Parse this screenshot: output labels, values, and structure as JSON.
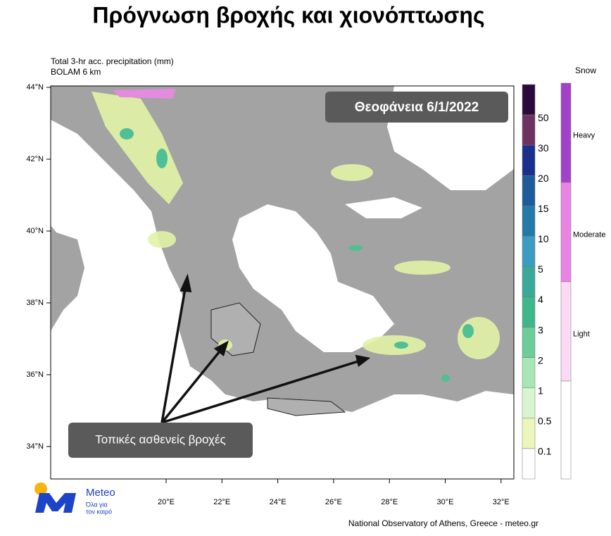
{
  "title": "Πρόγνωση βροχής και χιονόπτωσης",
  "map": {
    "header": [
      "Total 3-hr acc. precipitation (mm)",
      "BOLAM 6 km"
    ],
    "lat_labels": [
      "44°N",
      "42°N",
      "40°N",
      "38°N",
      "36°N",
      "34°N"
    ],
    "lon_labels": [
      "20°E",
      "22°E",
      "24°E",
      "26°E",
      "28°E",
      "30°E",
      "32°E"
    ],
    "date_box": "Θεοφάνεια 6/1/2022",
    "annotation": "Τοπικές ασθενείς βροχές"
  },
  "rain_legend": {
    "colors": [
      "#2b0b3d",
      "#6e3262",
      "#1b2f8c",
      "#1f5b9b",
      "#2379a8",
      "#3b9cc1",
      "#3aa99a",
      "#40b68b",
      "#6dcc98",
      "#a9e6b5",
      "#d8f5d0",
      "#ecf6ba",
      "#ffffff"
    ],
    "labels": [
      "50",
      "30",
      "20",
      "15",
      "10",
      "5",
      "4",
      "3",
      "2",
      "1",
      "0.5",
      "0.1"
    ]
  },
  "snow_legend": {
    "title": "Snow",
    "levels": [
      {
        "label": "Heavy",
        "color": "#a142c9"
      },
      {
        "label": "Moderate",
        "color": "#ea84e2"
      },
      {
        "label": "Light",
        "color": "#fcd9f5"
      }
    ]
  },
  "logo": {
    "name": "Meteo",
    "tagline": [
      "Όλα για",
      "τον καιρό"
    ]
  },
  "footer": "National Observatory of Athens, Greece - meteo.gr"
}
